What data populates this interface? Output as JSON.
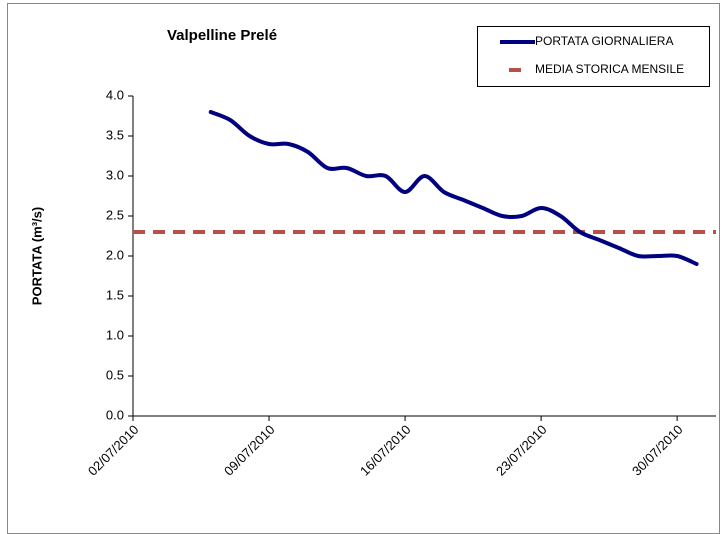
{
  "chart_data": {
    "type": "line",
    "title": "Valpelline Prelé",
    "y_label": "PORTATA (m³/s)",
    "x": [
      "06/07/2010",
      "07/07/2010",
      "08/07/2010",
      "09/07/2010",
      "10/07/2010",
      "11/07/2010",
      "12/07/2010",
      "13/07/2010",
      "14/07/2010",
      "15/07/2010",
      "16/07/2010",
      "17/07/2010",
      "18/07/2010",
      "19/07/2010",
      "20/07/2010",
      "21/07/2010",
      "22/07/2010",
      "23/07/2010",
      "24/07/2010",
      "25/07/2010",
      "26/07/2010",
      "27/07/2010",
      "28/07/2010",
      "29/07/2010",
      "30/07/2010",
      "31/07/2010"
    ],
    "series": [
      {
        "name": "PORTATA GIORNALIERA",
        "color": "#000080",
        "values": [
          3.8,
          3.7,
          3.5,
          3.4,
          3.4,
          3.3,
          3.1,
          3.1,
          3.0,
          3.0,
          2.8,
          3.0,
          2.8,
          2.7,
          2.6,
          2.5,
          2.5,
          2.6,
          2.5,
          2.3,
          2.2,
          2.1,
          2.0,
          2.0,
          2.0,
          1.9
        ]
      }
    ],
    "reference_lines": [
      {
        "name": "MEDIA STORICA MENSILE",
        "color": "#b5504b",
        "value": 2.3
      }
    ],
    "xlim": [
      "02/07/2010",
      "01/08/2010"
    ],
    "xticks": [
      "02/07/2010",
      "09/07/2010",
      "16/07/2010",
      "23/07/2010",
      "30/07/2010"
    ],
    "ylim": [
      0,
      4
    ],
    "yticks": [
      {
        "value": 0,
        "label": "0.0"
      },
      {
        "value": 0.5,
        "label": "0.5"
      },
      {
        "value": 1,
        "label": "1.0"
      },
      {
        "value": 1.5,
        "label": "1.5"
      },
      {
        "value": 2,
        "label": "2.0"
      },
      {
        "value": 2.5,
        "label": "2.5"
      },
      {
        "value": 3,
        "label": "3.0"
      },
      {
        "value": 3.5,
        "label": "3.5"
      },
      {
        "value": 4,
        "label": "4.0"
      }
    ],
    "legend": "top-right"
  }
}
